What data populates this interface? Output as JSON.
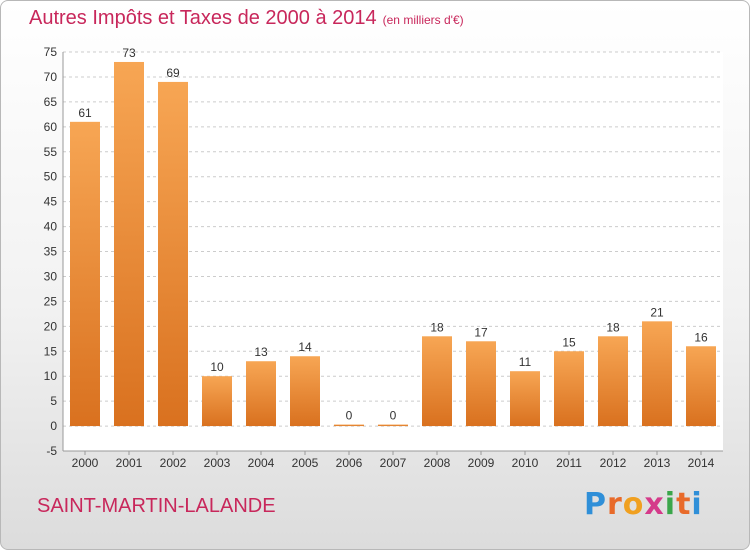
{
  "header": {
    "title": "Autres Impôts et Taxes de 2000 à 2014",
    "subtitle": "(en milliers d'€)"
  },
  "footer": {
    "commune": "SAINT-MARTIN-LALANDE",
    "logo": "Proxiti"
  },
  "colors": {
    "title": "#c8275b",
    "bar_light": "#f7a654",
    "bar_dark": "#d9711f",
    "grid": "#cccccc"
  },
  "chart_data": {
    "type": "bar",
    "title": "Autres Impôts et Taxes de 2000 à 2014",
    "subtitle": "(en milliers d'€)",
    "categories": [
      "2000",
      "2001",
      "2002",
      "2003",
      "2004",
      "2005",
      "2006",
      "2007",
      "2008",
      "2009",
      "2010",
      "2011",
      "2012",
      "2013",
      "2014"
    ],
    "values": [
      61,
      73,
      69,
      10,
      13,
      14,
      0,
      0,
      18,
      17,
      11,
      15,
      18,
      21,
      16
    ],
    "ylim": [
      -5,
      75
    ],
    "yticks": [
      -5,
      0,
      5,
      10,
      15,
      20,
      25,
      30,
      35,
      40,
      45,
      50,
      55,
      60,
      65,
      70,
      75
    ],
    "grid": "horizontal dashed",
    "data_labels": true
  }
}
